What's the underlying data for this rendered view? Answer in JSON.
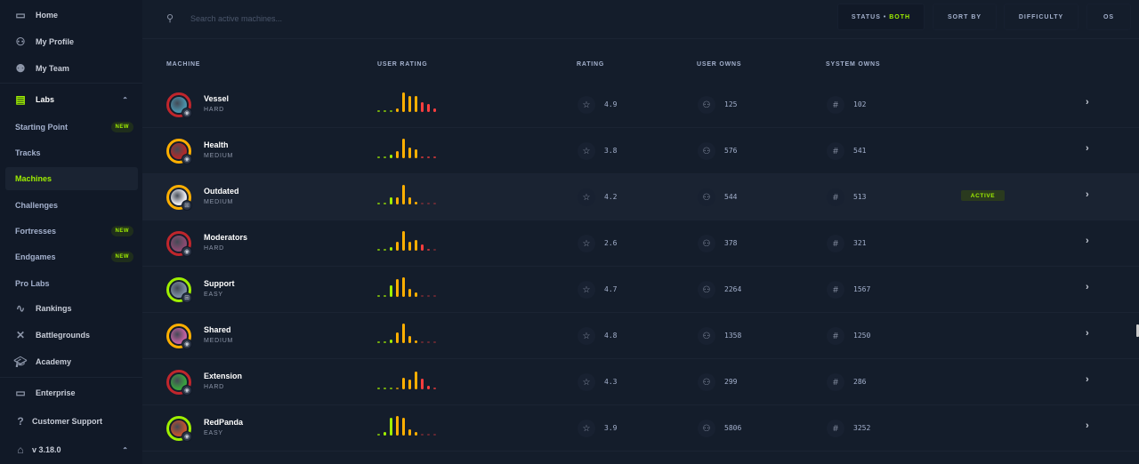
{
  "sidebar": {
    "home": "Home",
    "profile": "My Profile",
    "team": "My Team",
    "labs": "Labs",
    "items": [
      {
        "label": "Starting Point",
        "badge": "NEW"
      },
      {
        "label": "Tracks"
      },
      {
        "label": "Machines"
      },
      {
        "label": "Challenges"
      },
      {
        "label": "Fortresses",
        "badge": "NEW"
      },
      {
        "label": "Endgames",
        "badge": "NEW"
      },
      {
        "label": "Pro Labs"
      }
    ],
    "rankings": "Rankings",
    "battlegrounds": "Battlegrounds",
    "academy": "Academy",
    "enterprise": "Enterprise",
    "support": "Customer Support",
    "version": "v 3.18.0"
  },
  "search": {
    "placeholder": "Search active machines..."
  },
  "filters": {
    "status": "STATUS",
    "status_value": "BOTH",
    "sort": "SORT BY",
    "difficulty": "DIFFICULTY",
    "os": "OS"
  },
  "columns": {
    "machine": "MACHINE",
    "user_rating": "USER RATING",
    "rating": "RATING",
    "user_owns": "USER OWNS",
    "system_owns": "SYSTEM OWNS"
  },
  "colors": {
    "accent": "#9fef00",
    "easy": "#9fef00",
    "medium": "#ffaf00",
    "hard": "#c0262c",
    "bg": "#141d2b",
    "sidebar": "#111927"
  },
  "machines": [
    {
      "name": "Vessel",
      "difficulty": "HARD",
      "os": "linux",
      "rating": "4.9",
      "user_owns": "125",
      "system_owns": "102",
      "dist": [
        0.1,
        0.1,
        0.1,
        0.2,
        1,
        0.8,
        0.8,
        0.5,
        0.4,
        0.2
      ],
      "avatar": "#4a90a8"
    },
    {
      "name": "Health",
      "difficulty": "MEDIUM",
      "os": "linux",
      "rating": "3.8",
      "user_owns": "576",
      "system_owns": "541",
      "dist": [
        0.1,
        0.1,
        0.2,
        0.35,
        1,
        0.55,
        0.45,
        0.1,
        0.1,
        0.1
      ],
      "avatar": "#b02a2a"
    },
    {
      "name": "Outdated",
      "difficulty": "MEDIUM",
      "os": "windows",
      "rating": "4.2",
      "user_owns": "544",
      "system_owns": "513",
      "dist": [
        0.1,
        0.1,
        0.35,
        0.35,
        1,
        0.35,
        0.15,
        0.05,
        0.05,
        0.05
      ],
      "avatar": "#e8e8ee",
      "status": "ACTIVE"
    },
    {
      "name": "Moderators",
      "difficulty": "HARD",
      "os": "linux",
      "rating": "2.6",
      "user_owns": "378",
      "system_owns": "321",
      "dist": [
        0.05,
        0.1,
        0.2,
        0.45,
        1,
        0.45,
        0.55,
        0.3,
        0.1,
        0.05
      ],
      "avatar": "#8a4a70"
    },
    {
      "name": "Support",
      "difficulty": "EASY",
      "os": "windows",
      "rating": "4.7",
      "user_owns": "2264",
      "system_owns": "1567",
      "dist": [
        0.1,
        0.1,
        0.6,
        0.9,
        1,
        0.4,
        0.25,
        0.05,
        0.05,
        0.05
      ],
      "avatar": "#7a8aa0"
    },
    {
      "name": "Shared",
      "difficulty": "MEDIUM",
      "os": "linux",
      "rating": "4.8",
      "user_owns": "1358",
      "system_owns": "1250",
      "dist": [
        0.05,
        0.05,
        0.2,
        0.55,
        1,
        0.35,
        0.15,
        0.05,
        0.05,
        0.05
      ],
      "avatar": "#c060a0"
    },
    {
      "name": "Extension",
      "difficulty": "HARD",
      "os": "linux",
      "rating": "4.3",
      "user_owns": "299",
      "system_owns": "286",
      "dist": [
        0.1,
        0.1,
        0.1,
        0.1,
        0.6,
        0.5,
        0.9,
        0.55,
        0.2,
        0.1
      ],
      "avatar": "#3aa040"
    },
    {
      "name": "RedPanda",
      "difficulty": "EASY",
      "os": "linux",
      "rating": "3.9",
      "user_owns": "5806",
      "system_owns": "3252",
      "dist": [
        0.1,
        0.2,
        0.9,
        1,
        0.9,
        0.3,
        0.2,
        0.05,
        0.05,
        0.05
      ],
      "avatar": "#c05030"
    }
  ]
}
